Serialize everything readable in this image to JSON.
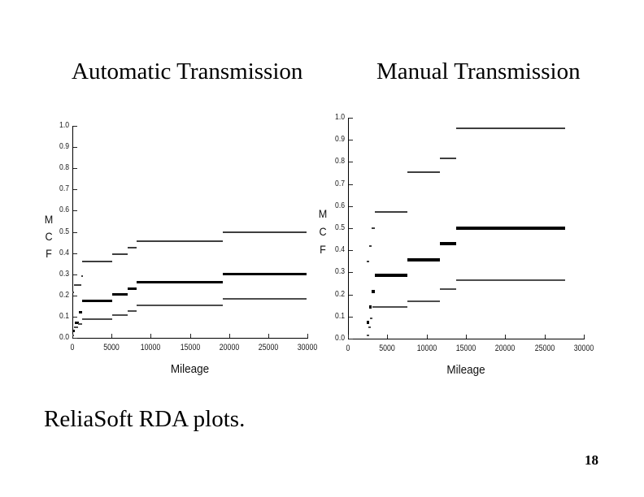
{
  "slide": {
    "caption": "ReliaSoft RDA plots.",
    "page_number": "18",
    "background_color": "#ffffff",
    "text_color": "#000000"
  },
  "chart_data": [
    {
      "type": "step",
      "title": "Automatic Transmission",
      "xlabel": "Mileage",
      "ylabel": "MCF",
      "ylabel_stacked": [
        "M",
        "C",
        "F"
      ],
      "xlim": [
        0,
        30000
      ],
      "ylim": [
        0.0,
        1.0
      ],
      "xticks": [
        0,
        5000,
        10000,
        15000,
        20000,
        25000,
        30000
      ],
      "ytick_labels": [
        "0.0",
        "0.1",
        "0.2",
        "0.3",
        "0.4",
        "0.5",
        "0.6",
        "0.7",
        "0.8",
        "0.9",
        "1.0"
      ],
      "grid": false,
      "legend": "none",
      "axis_color": "#000000",
      "series": [
        {
          "name": "upper-confidence-bound",
          "color": "#3e3e3e",
          "thickness": 2,
          "segments": [
            [
              0,
              200,
              0.215
            ],
            [
              200,
              1100,
              0.25
            ],
            [
              1100,
              1250,
              0.29
            ],
            [
              1250,
              5050,
              0.36
            ],
            [
              5050,
              7050,
              0.395
            ],
            [
              7050,
              8250,
              0.425
            ],
            [
              8250,
              19200,
              0.455
            ],
            [
              19200,
              29900,
              0.497
            ]
          ]
        },
        {
          "name": "mcf-estimate",
          "color": "#000000",
          "thickness": 3,
          "segments": [
            [
              0,
              350,
              0.032
            ],
            [
              350,
              800,
              0.07
            ],
            [
              800,
              1250,
              0.122
            ],
            [
              1250,
              5050,
              0.176
            ],
            [
              5050,
              7050,
              0.205
            ],
            [
              7050,
              8250,
              0.233
            ],
            [
              8250,
              19200,
              0.263
            ],
            [
              19200,
              29900,
              0.3
            ]
          ]
        },
        {
          "name": "lower-confidence-bound",
          "color": "#4d4d4d",
          "thickness": 2,
          "segments": [
            [
              0,
              250,
              0.013
            ],
            [
              250,
              700,
              0.048
            ],
            [
              700,
              1250,
              0.066
            ],
            [
              1250,
              5050,
              0.09
            ],
            [
              5050,
              7050,
              0.108
            ],
            [
              7050,
              8250,
              0.128
            ],
            [
              8250,
              19200,
              0.152
            ],
            [
              19200,
              29900,
              0.185
            ]
          ]
        }
      ]
    },
    {
      "type": "step",
      "title": "Manual Transmission",
      "xlabel": "Mileage",
      "ylabel": "MCF",
      "ylabel_stacked": [
        "M",
        "C",
        "F"
      ],
      "xlim": [
        0,
        30000
      ],
      "ylim": [
        0.0,
        1.0
      ],
      "xticks": [
        0,
        5000,
        10000,
        15000,
        20000,
        25000,
        30000
      ],
      "ytick_labels": [
        "0.0",
        "0.1",
        "0.2",
        "0.3",
        "0.4",
        "0.5",
        "0.6",
        "0.7",
        "0.8",
        "0.9",
        "1.0"
      ],
      "grid": false,
      "legend": "none",
      "axis_color": "#000000",
      "series": [
        {
          "name": "upper-confidence-bound",
          "color": "#3e3e3e",
          "thickness": 2,
          "segments": [
            [
              2350,
              2700,
              0.35
            ],
            [
              2700,
              3050,
              0.42
            ],
            [
              3050,
              3450,
              0.5
            ],
            [
              3450,
              7500,
              0.575
            ],
            [
              7500,
              11650,
              0.755
            ],
            [
              11650,
              13800,
              0.815
            ],
            [
              13800,
              27650,
              0.952
            ]
          ]
        },
        {
          "name": "mcf-estimate",
          "color": "#000000",
          "thickness": 4,
          "segments": [
            [
              2350,
              2650,
              0.075
            ],
            [
              2650,
              3050,
              0.145
            ],
            [
              3050,
              3450,
              0.215
            ],
            [
              3450,
              7500,
              0.285
            ],
            [
              7500,
              11650,
              0.355
            ],
            [
              11650,
              13800,
              0.43
            ],
            [
              13800,
              27650,
              0.5
            ]
          ]
        },
        {
          "name": "lower-confidence-bound",
          "color": "#4d4d4d",
          "thickness": 2,
          "segments": [
            [
              2400,
              2650,
              0.013
            ],
            [
              2550,
              2900,
              0.05
            ],
            [
              2750,
              3100,
              0.092
            ],
            [
              3100,
              7500,
              0.145
            ],
            [
              7500,
              11650,
              0.17
            ],
            [
              11650,
              13800,
              0.225
            ],
            [
              13800,
              27650,
              0.263
            ]
          ]
        }
      ]
    }
  ]
}
